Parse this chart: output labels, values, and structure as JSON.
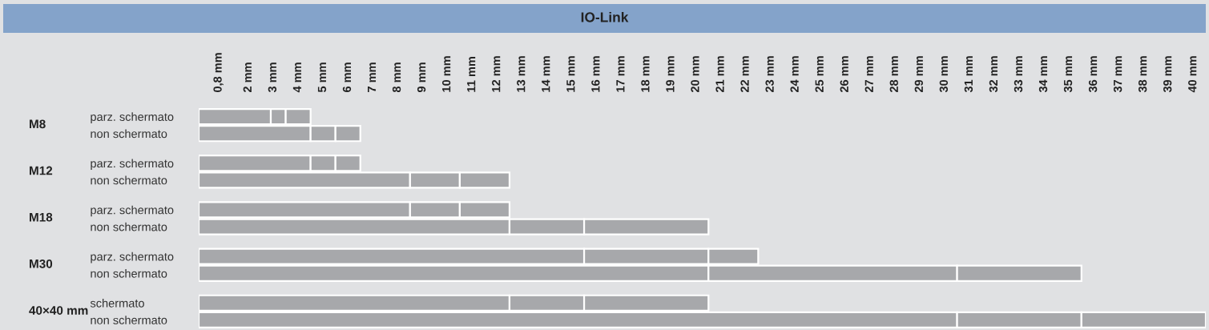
{
  "chart_data": {
    "type": "bar",
    "orientation": "horizontal",
    "stacked": true,
    "title": "IO-Link",
    "categories": [
      "parz. schermato",
      "non schermato",
      "parz. schermato",
      "non schermato",
      "parz. schermato",
      "non schermato",
      "parz. schermato",
      "non schermato",
      "schermato",
      "non schermato"
    ],
    "annotations": [
      "M8",
      "M12",
      "M18",
      "M30",
      "40×40 mm"
    ],
    "series": [
      {
        "color": "#a7a8ab",
        "values": [
          2.9,
          4.5,
          4.5,
          8.5,
          8.5,
          12.5,
          15.5,
          20.5,
          12.5,
          30.5
        ]
      },
      {
        "color": "#a7a8ab",
        "values": [
          0.6,
          1,
          1,
          2,
          2,
          3,
          5,
          10,
          3,
          5
        ]
      },
      {
        "color": "#a7a8ab",
        "values": [
          1,
          1,
          1,
          2,
          2,
          5,
          2,
          5,
          5,
          5
        ]
      }
    ],
    "xlim": [
      0,
      40.5
    ],
    "xticks": [
      {
        "value": 0.8,
        "label": "0,8 mm"
      },
      {
        "value": 2,
        "label": "2 mm"
      },
      {
        "value": 3,
        "label": "3 mm"
      },
      {
        "value": 4,
        "label": "4 mm"
      },
      {
        "value": 5,
        "label": "5 mm"
      },
      {
        "value": 6,
        "label": "6 mm"
      },
      {
        "value": 7,
        "label": "7 mm"
      },
      {
        "value": 8,
        "label": "8 mm"
      },
      {
        "value": 9,
        "label": "9 mm"
      },
      {
        "value": 10,
        "label": "10 mm"
      },
      {
        "value": 11,
        "label": "11 mm"
      },
      {
        "value": 12,
        "label": "12 mm"
      },
      {
        "value": 13,
        "label": "13 mm"
      },
      {
        "value": 14,
        "label": "14 mm"
      },
      {
        "value": 15,
        "label": "15 mm"
      },
      {
        "value": 16,
        "label": "16 mm"
      },
      {
        "value": 17,
        "label": "17 mm"
      },
      {
        "value": 18,
        "label": "18 mm"
      },
      {
        "value": 19,
        "label": "19 mm"
      },
      {
        "value": 20,
        "label": "20 mm"
      },
      {
        "value": 21,
        "label": "21 mm"
      },
      {
        "value": 22,
        "label": "22 mm"
      },
      {
        "value": 23,
        "label": "23 mm"
      },
      {
        "value": 24,
        "label": "24 mm"
      },
      {
        "value": 25,
        "label": "25 mm"
      },
      {
        "value": 26,
        "label": "26 mm"
      },
      {
        "value": 27,
        "label": "27 mm"
      },
      {
        "value": 28,
        "label": "28 mm"
      },
      {
        "value": 29,
        "label": "29 mm"
      },
      {
        "value": 30,
        "label": "30 mm"
      },
      {
        "value": 31,
        "label": "31 mm"
      },
      {
        "value": 32,
        "label": "32 mm"
      },
      {
        "value": 33,
        "label": "33 mm"
      },
      {
        "value": 34,
        "label": "34 mm"
      },
      {
        "value": 35,
        "label": "35 mm"
      },
      {
        "value": 36,
        "label": "36 mm"
      },
      {
        "value": 37,
        "label": "37 mm"
      },
      {
        "value": 38,
        "label": "38 mm"
      },
      {
        "value": 39,
        "label": "39 mm"
      },
      {
        "value": 40,
        "label": "40 mm"
      }
    ],
    "grid": false,
    "legend": false
  }
}
